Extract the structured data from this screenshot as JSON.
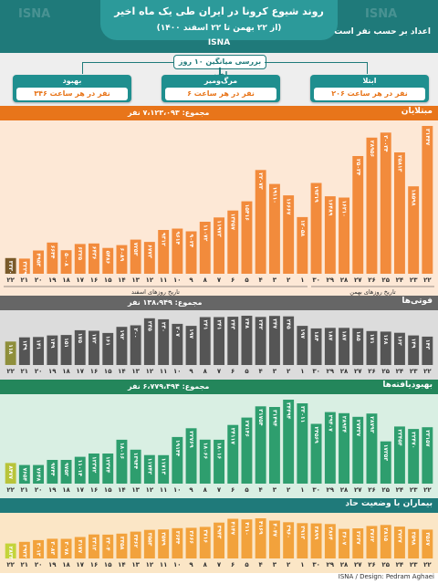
{
  "header": {
    "title": "روند شیوع کرونا در ایران طی یک ماه اخیر",
    "date_range": "(از ۲۲ بهمن تا ۲۲ اسفند ۱۴۰۰)",
    "agency": "ISNA",
    "subtitle": "اعداد بر حسب نفر است"
  },
  "avg_title": "بررسی میانگین ۱۰ روز اخیر",
  "averages": [
    {
      "label": "ابتلا",
      "value": "۲۰۶ نفر در هر ساعت",
      "color": "#1f8f8f"
    },
    {
      "label": "مرگ‌ومیر",
      "value": "۶ نفر در هر ساعت",
      "color": "#1f8f8f"
    },
    {
      "label": "بهبود",
      "value": "۳۴۶ نفر در هر ساعت",
      "color": "#1f8f8f"
    }
  ],
  "watermark": "ISNA",
  "footer": "ISNA / Design: Pedram Aghaei",
  "chart_data": [
    {
      "type": "bar",
      "title": "مبتلایان",
      "total": "مجموع: ۷،۱۲۳،۰۹۳ نفر",
      "x_groups": {
        "bahman": "تاریخ روزهای بهمن",
        "esfand": "تاریخ روزهای اسفند"
      },
      "categories": [
        "۲۲",
        "۲۳",
        "۲۴",
        "۲۵",
        "۲۶",
        "۲۷",
        "۲۸",
        "۲۹",
        "۳۰",
        "۱",
        "۲",
        "۳",
        "۴",
        "۵",
        "۶",
        "۷",
        "۸",
        "۹",
        "۱۰",
        "۱۱",
        "۱۲",
        "۱۳",
        "۱۴",
        "۱۵",
        "۱۶",
        "۱۷",
        "۱۸",
        "۱۹",
        "۲۰",
        "۲۱",
        "۲۲"
      ],
      "values": [
        31447,
        18598,
        25813,
        30034,
        28956,
        25034,
        16210,
        16489,
        19319,
        12058,
        16667,
        19110,
        22073,
        15416,
        13457,
        11973,
        11072,
        9024,
        9614,
        9312,
        6773,
        7253,
        6089,
        5486,
        6436,
        6325,
        5008,
        6644,
        4953,
        3229,
        3330
      ],
      "highlight_last": true,
      "colors": {
        "bar": "#f28b3c",
        "highlight": "#7a5a2a",
        "bg": "#fde8d6",
        "head": "#e8751a"
      }
    },
    {
      "type": "bar",
      "title": "فوتی‌ها",
      "total": "مجموع: ۱۳۸،۹۴۹ نفر",
      "categories": [
        "۲۲",
        "۲۳",
        "۲۴",
        "۲۵",
        "۲۶",
        "۲۷",
        "۲۸",
        "۲۹",
        "۳۰",
        "۱",
        "۲",
        "۳",
        "۴",
        "۵",
        "۶",
        "۷",
        "۸",
        "۹",
        "۱۰",
        "۱۱",
        "۱۲",
        "۱۳",
        "۱۴",
        "۱۵",
        "۱۶",
        "۱۷",
        "۱۸",
        "۱۹",
        "۲۰",
        "۲۱",
        "۲۲"
      ],
      "values": [
        143,
        149,
        162,
        168,
        171,
        185,
        187,
        187,
        184,
        197,
        245,
        247,
        242,
        248,
        243,
        241,
        241,
        197,
        207,
        230,
        235,
        200,
        192,
        161,
        172,
        175,
        151,
        149,
        141,
        139,
        118
      ],
      "highlight_last": true,
      "colors": {
        "bar": "#555555",
        "highlight": "#8f8f3c",
        "bg": "#dcdcdc",
        "head": "#666666"
      }
    },
    {
      "type": "bar",
      "title": "بهبودیافته‌ها",
      "total": "مجموع: ۶،۷۷۹،۴۹۴ نفر",
      "categories": [
        "۲۲",
        "۲۳",
        "۲۴",
        "۲۵",
        "۲۶",
        "۲۷",
        "۲۸",
        "۲۹",
        "۳۰",
        "۱",
        "۲",
        "۳",
        "۴",
        "۵",
        "۶",
        "۷",
        "۸",
        "۹",
        "۱۰",
        "۱۱",
        "۱۲",
        "۱۳",
        "۱۴",
        "۱۵",
        "۱۶",
        "۱۷",
        "۱۸",
        "۱۹",
        "۲۰",
        "۲۱",
        "۲۲"
      ],
      "values": [
        23157,
        22470,
        23454,
        17353,
        28793,
        27437,
        28934,
        29407,
        24569,
        33011,
        34494,
        31494,
        31754,
        27146,
        24117,
        18016,
        18066,
        22769,
        19144,
        11713,
        11742,
        13944,
        18016,
        12374,
        12372,
        11014,
        9753,
        9744,
        7648,
        7654,
        8477
      ],
      "highlight_last": true,
      "colors": {
        "bar": "#2e9e6e",
        "highlight": "#b8c43a",
        "bg": "#d9efe3",
        "head": "#23865b"
      }
    },
    {
      "type": "bar",
      "title": "بیماران با وضعیت حاد",
      "categories": [
        "۲۲",
        "۲۳",
        "۲۴",
        "۲۵",
        "۲۶",
        "۲۷",
        "۲۸",
        "۲۹",
        "۳۰",
        "۱",
        "۲",
        "۳",
        "۴",
        "۵",
        "۶",
        "۷",
        "۸",
        "۹",
        "۱۰",
        "۱۱",
        "۱۲",
        "۱۳",
        "۱۴",
        "۱۵",
        "۱۶",
        "۱۷",
        "۱۸",
        "۱۹",
        "۲۰",
        "۲۱",
        "۲۲"
      ],
      "values": [
        3567,
        3598,
        3727,
        3815,
        3762,
        3637,
        3607,
        3864,
        3899,
        3913,
        3960,
        4047,
        4169,
        4110,
        4147,
        3943,
        3716,
        3666,
        3644,
        3579,
        3553,
        3462,
        3358,
        3304,
        3312,
        3177,
        3078,
        3083,
        3013,
        2922,
        2833
      ],
      "highlight_last": true,
      "colors": {
        "bar": "#f2a23c",
        "highlight": "#c4d43a",
        "bg": "#fbe6c6",
        "head": "#1f7a7a"
      }
    }
  ]
}
